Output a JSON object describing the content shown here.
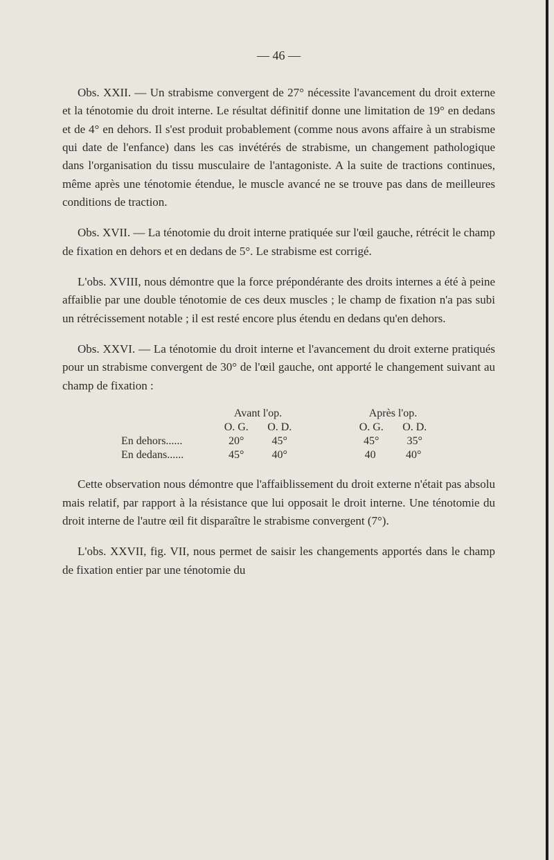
{
  "page_number": "— 46 —",
  "paragraphs": {
    "p1": "Obs. XXII. — Un strabisme convergent de 27° nécessite l'avancement du droit externe et la ténotomie du droit interne. Le résultat définitif donne une limitation de 19° en dedans et de 4° en dehors. Il s'est produit probablement (comme nous avons affaire à un strabisme qui date de l'enfance) dans les cas invétérés de strabisme, un changement pathologique dans l'organisation du tissu musculaire de l'antagoniste. A la suite de tractions continues, même après une ténotomie étendue, le muscle avancé ne se trouve pas dans de meilleures conditions de traction.",
    "p2": "Obs. XVII. — La ténotomie du droit interne pratiquée sur l'œil gauche, rétrécit le champ de fixation en dehors et en dedans de 5°. Le strabisme est corrigé.",
    "p3": "L'obs. XVIII, nous démontre que la force prépondérante des droits internes a été à peine affaiblie par une double ténotomie de ces deux muscles ; le champ de fixation n'a pas subi un rétrécissement notable ; il est resté encore plus étendu en dedans qu'en dehors.",
    "p4": "Obs. XXVI. — La ténotomie du droit interne et l'avancement du droit externe pratiqués pour un strabisme convergent de 30° de l'œil gauche, ont apporté le changement suivant au champ de fixation :",
    "p5": "Cette observation nous démontre que l'affaiblissement du droit externe n'était pas absolu mais relatif, par rapport à la résistance que lui opposait le droit interne. Une ténotomie du droit interne de l'autre œil fit disparaître le strabisme convergent (7°).",
    "p6": "L'obs. XXVII, fig. VII, nous permet de saisir les changements apportés dans le champ de fixation entier par une ténotomie du"
  },
  "table": {
    "header_left": "Avant l'op.",
    "header_right": "Après l'op.",
    "sub_og": "O. G.",
    "sub_od": "O. D.",
    "row1_label": "En dehors......",
    "row1_c1": "20°",
    "row1_c2": "45°",
    "row1_c3": "45°",
    "row1_c4": "35°",
    "row2_label": "En dedans......",
    "row2_c1": "45°",
    "row2_c2": "40°",
    "row2_c3": "40",
    "row2_c4": "40°"
  }
}
